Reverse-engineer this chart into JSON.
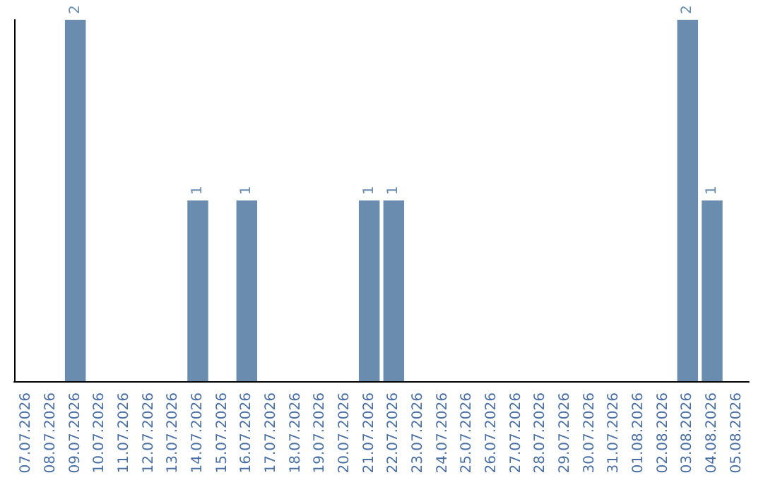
{
  "chart_data": {
    "type": "bar",
    "categories": [
      "07.07.2026",
      "08.07.2026",
      "09.07.2026",
      "10.07.2026",
      "11.07.2026",
      "12.07.2026",
      "13.07.2026",
      "14.07.2026",
      "15.07.2026",
      "16.07.2026",
      "17.07.2026",
      "18.07.2026",
      "19.07.2026",
      "20.07.2026",
      "21.07.2026",
      "22.07.2026",
      "23.07.2026",
      "24.07.2026",
      "25.07.2026",
      "26.07.2026",
      "27.07.2026",
      "28.07.2026",
      "29.07.2026",
      "30.07.2026",
      "31.07.2026",
      "01.08.2026",
      "02.08.2026",
      "03.08.2026",
      "04.08.2026",
      "05.08.2026"
    ],
    "values": [
      null,
      null,
      2,
      null,
      null,
      null,
      null,
      1,
      null,
      1,
      null,
      null,
      null,
      null,
      1,
      1,
      null,
      null,
      null,
      null,
      null,
      null,
      null,
      null,
      null,
      null,
      null,
      2,
      1,
      null
    ],
    "color": "#6a8caf",
    "data_labels": true,
    "tick_labels": "x",
    "grid": false
  }
}
